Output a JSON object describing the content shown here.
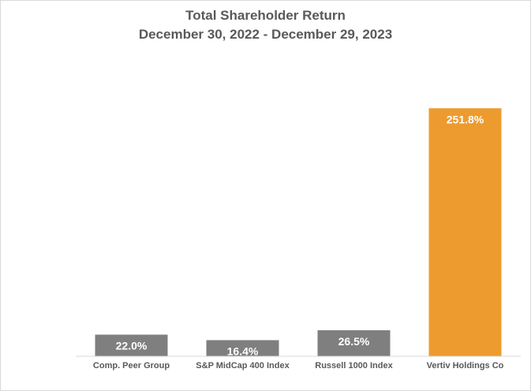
{
  "chart_data": {
    "type": "bar",
    "title": "Total Shareholder Return",
    "subtitle": "December 30, 2022 - December 29, 2023",
    "categories": [
      "Comp. Peer Group",
      "S&P MidCap 400 Index",
      "Russell 1000 Index",
      "Vertiv Holdings Co"
    ],
    "values": [
      22.0,
      16.4,
      26.5,
      251.8
    ],
    "data_labels": [
      "22.0%",
      "16.4%",
      "26.5%",
      "251.8%"
    ],
    "colors": [
      "#7f7f7f",
      "#7f7f7f",
      "#7f7f7f",
      "#ed9b2e"
    ],
    "ylim": [
      0,
      280
    ],
    "grid": false,
    "legend": "none",
    "xlabel": "",
    "ylabel": ""
  }
}
